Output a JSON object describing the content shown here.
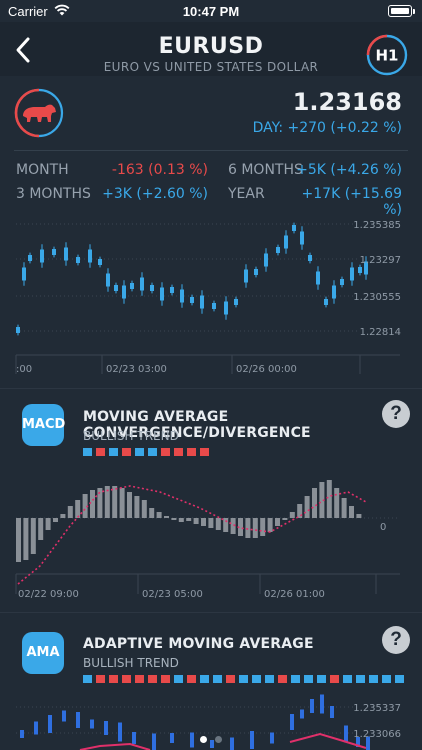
{
  "status_bar": {
    "carrier": "Carrier",
    "time": "10:47 PM"
  },
  "header": {
    "title": "EURUSD",
    "subtitle": "EURO VS UNITED STATES DOLLAR",
    "timeframe": "H1"
  },
  "quote": {
    "price": "1.23168",
    "day_change": "DAY: +270 (+0.22 %)"
  },
  "stats": [
    {
      "label": "MONTH",
      "value": "-163 (0.13 %)",
      "direction": "down"
    },
    {
      "label": "6 MONTHS",
      "value": "+5K (+4.26 %)",
      "direction": "up"
    },
    {
      "label": "3 MONTHS",
      "value": "+3K (+2.60 %)",
      "direction": "up"
    },
    {
      "label": "YEAR",
      "value": "+17K (+15.69 %)",
      "direction": "up"
    }
  ],
  "price_chart": {
    "y_ticks": [
      "1.235385",
      "1.23297",
      "1.230555",
      "1.22814"
    ],
    "x_ticks": [
      ":00",
      "02/23 03:00",
      "02/26 00:00"
    ],
    "colors": {
      "candle": "#3aa8e8",
      "grid": "#3a4551"
    }
  },
  "indicators": [
    {
      "icon": "MACD",
      "title": "MOVING AVERAGE CONVERGENCE/DIVERGENCE",
      "trend": "BULLISH TREND",
      "signals": [
        "blue",
        "red",
        "blue",
        "red",
        "blue",
        "blue",
        "red",
        "red",
        "red",
        "red"
      ],
      "zero_label": "0",
      "x_ticks": [
        "02/22 09:00",
        "02/23 05:00",
        "02/26 01:00"
      ]
    },
    {
      "icon": "AMA",
      "title": "ADAPTIVE MOVING AVERAGE",
      "trend": "BULLISH TREND",
      "signals": [
        "blue",
        "red",
        "red",
        "red",
        "red",
        "red",
        "red",
        "blue",
        "red",
        "blue",
        "blue",
        "red",
        "blue",
        "blue",
        "blue",
        "red",
        "blue",
        "blue",
        "blue",
        "red",
        "blue",
        "blue",
        "blue",
        "blue",
        "blue"
      ],
      "y_ticks": [
        "1.235337",
        "1.233066"
      ]
    }
  ],
  "help_label": "?",
  "colors": {
    "accent": "#3aa8e8",
    "negative": "#e84a4a",
    "background": "#212b36"
  }
}
